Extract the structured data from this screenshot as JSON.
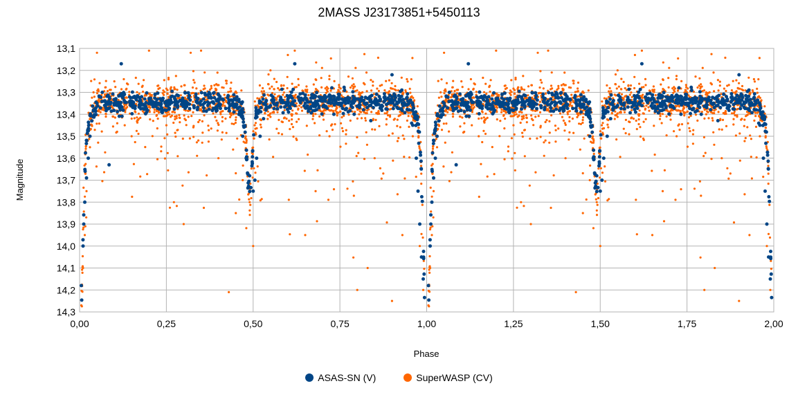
{
  "chart_data": {
    "type": "scatter",
    "title": "2MASS J23173851+5450113",
    "xlabel": "Phase",
    "ylabel": "Magnitude",
    "xlim": [
      0,
      2
    ],
    "ylim": [
      13.1,
      14.3
    ],
    "y_inverted": true,
    "grid": true,
    "legend_position": "bottom",
    "x_ticks": [
      "0,00",
      "0,25",
      "0,50",
      "0,75",
      "1,00",
      "1,25",
      "1,50",
      "1,75",
      "2,00"
    ],
    "y_ticks": [
      "13,1",
      "13,2",
      "13,3",
      "13,4",
      "13,5",
      "13,6",
      "13,7",
      "13,8",
      "13,9",
      "14,0",
      "14,1",
      "14,2",
      "14,3"
    ],
    "series": [
      {
        "name": "ASAS-SN (V)",
        "color": "#004586",
        "description_points": "approximate light-curve samples",
        "points": [
          [
            0.005,
            14.18
          ],
          [
            0.01,
            14.0
          ],
          [
            0.012,
            13.9
          ],
          [
            0.015,
            13.8
          ],
          [
            0.02,
            13.69
          ],
          [
            0.025,
            13.6
          ],
          [
            0.03,
            13.5
          ],
          [
            0.035,
            13.43
          ],
          [
            0.04,
            13.38
          ],
          [
            0.05,
            13.35
          ],
          [
            0.07,
            13.34
          ],
          [
            0.085,
            13.63
          ],
          [
            0.1,
            13.35
          ],
          [
            0.12,
            13.17
          ],
          [
            0.15,
            13.34
          ],
          [
            0.2,
            13.35
          ],
          [
            0.25,
            13.34
          ],
          [
            0.3,
            13.35
          ],
          [
            0.35,
            13.34
          ],
          [
            0.4,
            13.33
          ],
          [
            0.44,
            13.36
          ],
          [
            0.46,
            13.4
          ],
          [
            0.47,
            13.5
          ],
          [
            0.48,
            13.6
          ],
          [
            0.49,
            13.68
          ],
          [
            0.5,
            13.75
          ],
          [
            0.505,
            13.7
          ],
          [
            0.51,
            13.6
          ],
          [
            0.52,
            13.5
          ],
          [
            0.53,
            13.42
          ],
          [
            0.55,
            13.36
          ],
          [
            0.6,
            13.34
          ],
          [
            0.62,
            13.17
          ],
          [
            0.65,
            13.35
          ],
          [
            0.7,
            13.34
          ],
          [
            0.75,
            13.35
          ],
          [
            0.8,
            13.33
          ],
          [
            0.85,
            13.34
          ],
          [
            0.9,
            13.22
          ],
          [
            0.93,
            13.35
          ],
          [
            0.95,
            13.38
          ],
          [
            0.96,
            13.45
          ],
          [
            0.97,
            13.6
          ],
          [
            0.975,
            13.75
          ],
          [
            0.98,
            13.9
          ],
          [
            0.985,
            14.05
          ],
          [
            0.99,
            14.15
          ]
        ]
      },
      {
        "name": "SuperWASP (CV)",
        "color": "#ff6600",
        "description_points": "approximate light-curve samples",
        "points": [
          [
            0.005,
            14.27
          ],
          [
            0.01,
            14.1
          ],
          [
            0.015,
            13.95
          ],
          [
            0.02,
            13.75
          ],
          [
            0.03,
            13.55
          ],
          [
            0.04,
            13.3
          ],
          [
            0.05,
            13.12
          ],
          [
            0.1,
            13.25
          ],
          [
            0.15,
            13.5
          ],
          [
            0.2,
            13.11
          ],
          [
            0.25,
            13.45
          ],
          [
            0.3,
            13.9
          ],
          [
            0.32,
            13.12
          ],
          [
            0.35,
            13.11
          ],
          [
            0.4,
            13.6
          ],
          [
            0.43,
            14.21
          ],
          [
            0.45,
            13.85
          ],
          [
            0.47,
            13.7
          ],
          [
            0.49,
            13.8
          ],
          [
            0.5,
            14.0
          ],
          [
            0.55,
            13.2
          ],
          [
            0.6,
            13.13
          ],
          [
            0.62,
            13.11
          ],
          [
            0.65,
            13.95
          ],
          [
            0.68,
            13.75
          ],
          [
            0.72,
            13.5
          ],
          [
            0.75,
            13.3
          ],
          [
            0.8,
            14.2
          ],
          [
            0.83,
            14.1
          ],
          [
            0.85,
            13.6
          ],
          [
            0.9,
            14.25
          ],
          [
            0.93,
            13.95
          ],
          [
            0.96,
            13.5
          ],
          [
            0.98,
            14.0
          ],
          [
            0.99,
            14.2
          ]
        ]
      }
    ]
  }
}
